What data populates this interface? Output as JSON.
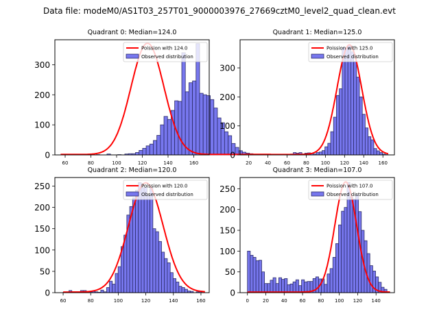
{
  "suptitle": "Data file: modeM0/AS1T03_257T01_9000003976_27669cztM0_level2_quad_clean.evt",
  "colors": {
    "bar_fill": "#7777ee",
    "bar_edge": "#2a2a66",
    "curve": "#ff0000"
  },
  "chart_data": [
    {
      "type": "bar",
      "title": "Quadrant 0: Median=124.0",
      "xlim": [
        52,
        172
      ],
      "ylim": [
        0,
        383
      ],
      "xticks": [
        60,
        80,
        100,
        120,
        140,
        160
      ],
      "yticks": [
        0,
        100,
        200,
        300
      ],
      "legend": {
        "placement": "top-right",
        "curve_label": "Poission with 124.0",
        "bar_label": "Observed distribution"
      },
      "bins": {
        "start": 56.5,
        "width": 2.77,
        "values": [
          0,
          0,
          0,
          0,
          0,
          1,
          0,
          0,
          0,
          0,
          1,
          0,
          0,
          3,
          0,
          0,
          1,
          0,
          3,
          4,
          4,
          8,
          15,
          22,
          30,
          36,
          48,
          65,
          100,
          128,
          118,
          148,
          180,
          178,
          340,
          210,
          240,
          246,
          370,
          205,
          200,
          197,
          184,
          156,
          123,
          107,
          77,
          64,
          38,
          25,
          14,
          9,
          6,
          4,
          2,
          1,
          0,
          0,
          0
        ]
      },
      "curve": {
        "mu": 124.0,
        "peak": 370
      }
    },
    {
      "type": "bar",
      "title": "Quadrant 1: Median=125.0",
      "xlim": [
        11,
        172
      ],
      "ylim": [
        0,
        397
      ],
      "xticks": [
        20,
        40,
        60,
        80,
        100,
        120,
        140,
        160
      ],
      "yticks": [
        0,
        100,
        200,
        300
      ],
      "legend": {
        "placement": "top-right",
        "curve_label": "Poission with 125.0",
        "bar_label": "Observed distribution"
      },
      "bins": {
        "start": 15.5,
        "width": 3.0,
        "values": [
          0,
          0,
          0,
          0,
          0,
          0,
          0,
          0,
          0,
          0,
          0,
          0,
          0,
          0,
          1,
          0,
          3,
          8,
          6,
          8,
          3,
          6,
          7,
          6,
          3,
          8,
          10,
          15,
          28,
          40,
          80,
          130,
          205,
          228,
          370,
          368,
          378,
          355,
          322,
          268,
          200,
          140,
          93,
          63,
          52,
          22,
          14,
          8,
          3,
          1
        ]
      },
      "curve": {
        "mu": 125.0,
        "peak": 378
      }
    },
    {
      "type": "bar",
      "title": "Quadrant 2: Median=120.0",
      "xlim": [
        54,
        166
      ],
      "ylim": [
        0,
        270
      ],
      "xticks": [
        60,
        80,
        100,
        120,
        140,
        160
      ],
      "yticks": [
        0,
        50,
        100,
        150,
        200,
        250
      ],
      "legend": {
        "placement": "top-right",
        "curve_label": "Poission with 120.0",
        "bar_label": "Observed distribution"
      },
      "bins": {
        "start": 60.0,
        "width": 2.1,
        "values": [
          1,
          0,
          5,
          1,
          2,
          0,
          5,
          5,
          3,
          2,
          3,
          2,
          1,
          6,
          2,
          12,
          27,
          20,
          45,
          61,
          108,
          135,
          182,
          202,
          222,
          240,
          258,
          246,
          247,
          228,
          246,
          150,
          143,
          120,
          95,
          80,
          70,
          47,
          33,
          25,
          15,
          12,
          8,
          4,
          3,
          0,
          2,
          4,
          0
        ]
      },
      "curve": {
        "mu": 120.0,
        "peak": 256
      }
    },
    {
      "type": "bar",
      "title": "Quadrant 3: Median=107.0",
      "xlim": [
        -8,
        160
      ],
      "ylim": [
        0,
        277
      ],
      "xticks": [
        0,
        20,
        40,
        60,
        80,
        100,
        120,
        140
      ],
      "yticks": [
        0,
        50,
        100,
        150,
        200,
        250
      ],
      "legend": {
        "placement": "top-right",
        "curve_label": "Poission with 107.0",
        "bar_label": "Observed distribution"
      },
      "bins": {
        "start": 0.0,
        "width": 3.1,
        "values": [
          100,
          90,
          85,
          77,
          78,
          50,
          22,
          22,
          30,
          36,
          22,
          36,
          32,
          34,
          19,
          21,
          26,
          31,
          17,
          31,
          26,
          27,
          27,
          34,
          38,
          33,
          33,
          20,
          45,
          58,
          85,
          118,
          163,
          196,
          205,
          265,
          230,
          225,
          236,
          195,
          150,
          125,
          94,
          65,
          52,
          38,
          25,
          13,
          8,
          2
        ]
      },
      "curve": {
        "mu": 107.0,
        "peak": 265
      }
    }
  ]
}
